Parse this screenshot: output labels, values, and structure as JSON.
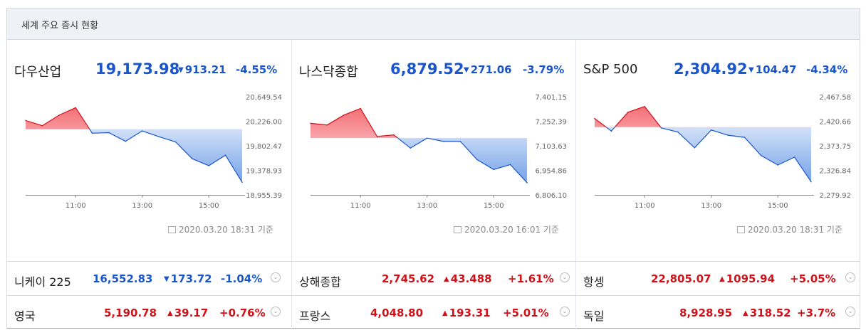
{
  "header": {
    "title": "세계 주요 증시 현황"
  },
  "panels": [
    {
      "name": "다우산업",
      "price": "19,173.98",
      "change": "913.21",
      "percent": "-4.55%",
      "y_ticks": [
        "20,649.54",
        "20,226.00",
        "19,802.47",
        "19,378.93",
        "18,955.39"
      ],
      "x_ticks": [
        "11:00",
        "13:00",
        "15:00"
      ],
      "timestamp": "2020.03.20 18:31 기준"
    },
    {
      "name": "나스닥종합",
      "price": "6,879.52",
      "change": "271.06",
      "percent": "-3.79%",
      "y_ticks": [
        "7,401.15",
        "7,252.39",
        "7,103.63",
        "6,954.86",
        "6,806.10"
      ],
      "x_ticks": [
        "11:00",
        "13:00",
        "15:00"
      ],
      "timestamp": "2020.03.20 16:01 기준"
    },
    {
      "name": "S&P 500",
      "price": "2,304.92",
      "change": "104.47",
      "percent": "-4.34%",
      "y_ticks": [
        "2,467.58",
        "2,420.66",
        "2,373.75",
        "2,326.84",
        "2,279.92"
      ],
      "x_ticks": [
        "11:00",
        "13:00",
        "15:00"
      ],
      "timestamp": "2020.03.20 18:31 기준"
    }
  ],
  "rows": [
    [
      {
        "name": "니케이 225",
        "price": "16,552.83",
        "change": "173.72",
        "percent": "-1.04%",
        "direction": "down"
      },
      {
        "name": "상해종합",
        "price": "2,745.62",
        "change": "43.488",
        "percent": "+1.61%",
        "direction": "up"
      },
      {
        "name": "항셍",
        "price": "22,805.07",
        "change": "1095.94",
        "percent": "+5.05%",
        "direction": "up"
      }
    ],
    [
      {
        "name": "영국",
        "price": "5,190.78",
        "change": "39.17",
        "percent": "+0.76%",
        "direction": "up"
      },
      {
        "name": "프랑스",
        "price": "4,048.80",
        "change": "193.31",
        "percent": "+5.01%",
        "direction": "up"
      },
      {
        "name": "독일",
        "price": "8,928.95",
        "change": "318.52",
        "percent": "+3.7%",
        "direction": "up"
      }
    ]
  ],
  "symbols": {
    "down": "▼",
    "up": "▲",
    "dropdown": "⌄"
  },
  "colors": {
    "up": "#d0121b",
    "down": "#1a56c9",
    "header_bg": "#eef1f6"
  },
  "chart_data": [
    {
      "type": "line",
      "title": "다우산업",
      "x_ticks": [
        "11:00",
        "13:00",
        "15:00"
      ],
      "ylim": [
        18955.39,
        20649.54
      ],
      "baseline": 20087.19,
      "x": [
        "09:30",
        "10:00",
        "10:30",
        "11:00",
        "11:30",
        "12:00",
        "12:30",
        "13:00",
        "13:30",
        "14:00",
        "14:30",
        "15:00",
        "15:30",
        "16:00"
      ],
      "values": [
        20240,
        20150,
        20330,
        20460,
        20020,
        20030,
        19880,
        20060,
        19960,
        19870,
        19580,
        19460,
        19640,
        19174
      ]
    },
    {
      "type": "line",
      "title": "나스닥종합",
      "x_ticks": [
        "11:00",
        "13:00",
        "15:00"
      ],
      "ylim": [
        6806.1,
        7401.15
      ],
      "baseline": 7150.58,
      "x": [
        "09:30",
        "10:00",
        "10:30",
        "11:00",
        "11:30",
        "12:00",
        "12:30",
        "13:00",
        "13:30",
        "14:00",
        "14:30",
        "15:00",
        "15:30",
        "16:00"
      ],
      "values": [
        7240,
        7230,
        7290,
        7330,
        7160,
        7170,
        7090,
        7150,
        7130,
        7130,
        7020,
        6960,
        6990,
        6880
      ]
    },
    {
      "type": "line",
      "title": "S&P 500",
      "x_ticks": [
        "11:00",
        "13:00",
        "15:00"
      ],
      "ylim": [
        2279.92,
        2467.58
      ],
      "baseline": 2409.39,
      "x": [
        "09:30",
        "10:00",
        "10:30",
        "11:00",
        "11:30",
        "12:00",
        "12:30",
        "13:00",
        "13:30",
        "14:00",
        "14:30",
        "15:00",
        "15:30",
        "16:00"
      ],
      "values": [
        2426,
        2402,
        2438,
        2449,
        2408,
        2400,
        2370,
        2404,
        2394,
        2390,
        2355,
        2337,
        2352,
        2305
      ]
    }
  ]
}
